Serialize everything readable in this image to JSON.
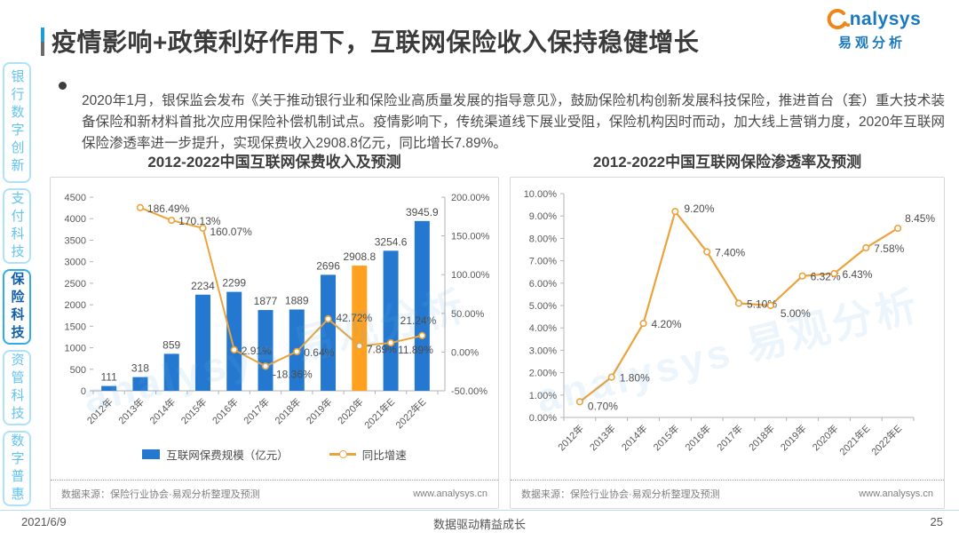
{
  "page": {
    "title": "疫情影响+政策利好作用下，互联网保险收入保持稳健增长",
    "logo": {
      "name": "analysys",
      "text_after_mark": "nalysys",
      "cn": "易观分析"
    },
    "bullet_text": "2020年1月，银保监会发布《关于推动银行业和保险业高质量发展的指导意见》，鼓励保险机构创新发展科技保险，推进首台（套）重大技术装备保险和新材料首批次应用保险补偿机制试点。疫情影响下，传统渠道线下展业受阻，保险机构因时而动，加大线上营销力度，2020年互联网保险渗透率进一步提升，实现保费收入2908.8亿元，同比增长7.89%。",
    "watermark": "analysys 易观分析",
    "footer": {
      "date": "2021/6/9",
      "slogan": "数据驱动精益成长",
      "page_number": "25"
    }
  },
  "sidebar": {
    "items": [
      {
        "label": "银行数字创新",
        "active": false
      },
      {
        "label": "支付科技",
        "active": false
      },
      {
        "label": "保险科技",
        "active": true
      },
      {
        "label": "资管科技",
        "active": false
      },
      {
        "label": "数字普惠",
        "active": false
      }
    ]
  },
  "colors": {
    "bar_blue": "#2478D0",
    "bar_highlight_orange": "#FFA01E",
    "line_orange": "#EBA33C",
    "accent_blue": "#1D9ED6",
    "sidebar_active_text": "#135FA9",
    "sidebar_inactive_text": "#62C4F0",
    "axis_text": "#595959"
  },
  "chart_data": [
    {
      "type": "bar",
      "title": "2012-2022中国互联网保费收入及预测",
      "categories": [
        "2012年",
        "2013年",
        "2014年",
        "2015年",
        "2016年",
        "2017年",
        "2018年",
        "2019年",
        "2020年",
        "2021年E",
        "2022年E"
      ],
      "series": [
        {
          "name": "互联网保费规模（亿元）",
          "chart_type": "bar",
          "values": [
            111,
            318,
            859,
            2234,
            2299,
            1877,
            1889,
            2696,
            2908.8,
            3254.6,
            3945.9
          ],
          "labels": [
            "111",
            "318",
            "859",
            "2234",
            "2299",
            "1877",
            "1889",
            "2696",
            "2908.8",
            "3254.6",
            "3945.9"
          ],
          "color": "#2478D0",
          "highlight_index": 8,
          "highlight_color": "#FFA01E"
        },
        {
          "name": "同比增速",
          "chart_type": "line",
          "values": [
            null,
            186.49,
            170.13,
            160.07,
            2.91,
            -18.36,
            0.64,
            42.72,
            7.89,
            11.89,
            21.24
          ],
          "labels": [
            null,
            "186.49%",
            "170.13%",
            "160.07%",
            "2.91%",
            "-18.36%",
            "0.64%",
            "42.72%",
            "7.89%",
            "11.89%",
            "21.24%"
          ],
          "color": "#EBA33C"
        }
      ],
      "ylim_left": [
        0,
        4500
      ],
      "ytick_step_left": 500,
      "ylim_right": [
        -50,
        200
      ],
      "ytick_step_right": 50,
      "grid": false,
      "legend_position": "bottom",
      "source": "数据来源：保险行业协会·易观分析整理及预测",
      "site": "www.analysys.cn"
    },
    {
      "type": "line",
      "title": "2012-2022中国互联网保险渗透率及预测",
      "categories": [
        "2012年",
        "2013年",
        "2014年",
        "2015年",
        "2016年",
        "2017年",
        "2018年",
        "2019年",
        "2020年",
        "2021年E",
        "2022年E"
      ],
      "values": [
        0.7,
        1.8,
        4.2,
        9.2,
        7.4,
        5.1,
        5.0,
        6.32,
        6.43,
        7.58,
        8.45
      ],
      "labels": [
        "0.70%",
        "1.80%",
        "4.20%",
        "9.20%",
        "7.40%",
        "5.10%",
        "5.00%",
        "6.32%",
        "6.43%",
        "7.58%",
        "8.45%"
      ],
      "color": "#EBA33C",
      "ylim": [
        0,
        10
      ],
      "ytick_step": 1,
      "grid": false,
      "source": "数据来源：保险行业协会·易观分析整理及预测",
      "site": "www.analysys.cn"
    }
  ]
}
